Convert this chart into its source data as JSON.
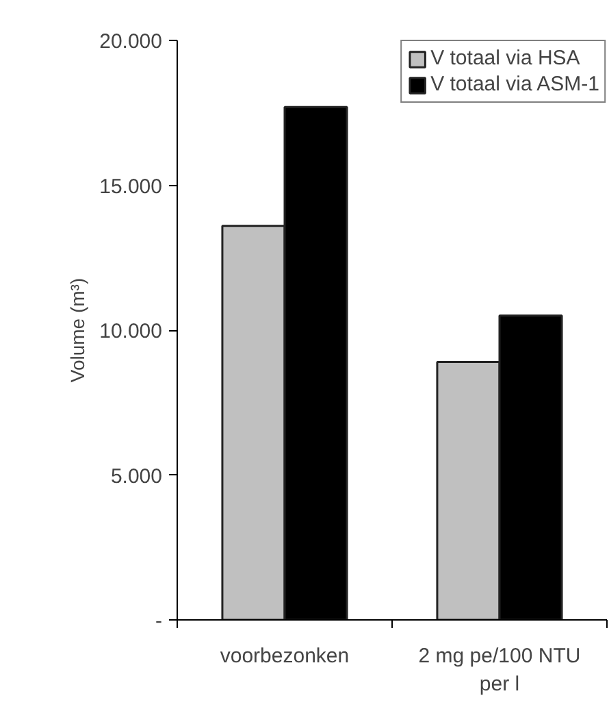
{
  "chart_data": {
    "type": "bar",
    "ylabel": "Volume (m³)",
    "categories": [
      "voorbezonken",
      "2 mg pe/100 NTU per l"
    ],
    "series": [
      {
        "name": "V totaal via HSA",
        "color": "#c0c0c0",
        "values": [
          13600,
          8900
        ]
      },
      {
        "name": "V totaal via ASM-1",
        "color": "#000000",
        "values": [
          17700,
          10500
        ]
      }
    ],
    "ylim": [
      0,
      20000
    ],
    "yticks": [
      {
        "value": 0,
        "label": "-"
      },
      {
        "value": 5000,
        "label": "5.000"
      },
      {
        "value": 10000,
        "label": "10.000"
      },
      {
        "value": 15000,
        "label": "15.000"
      },
      {
        "value": 20000,
        "label": "20.000"
      }
    ],
    "grid": false,
    "legend": "top right"
  }
}
